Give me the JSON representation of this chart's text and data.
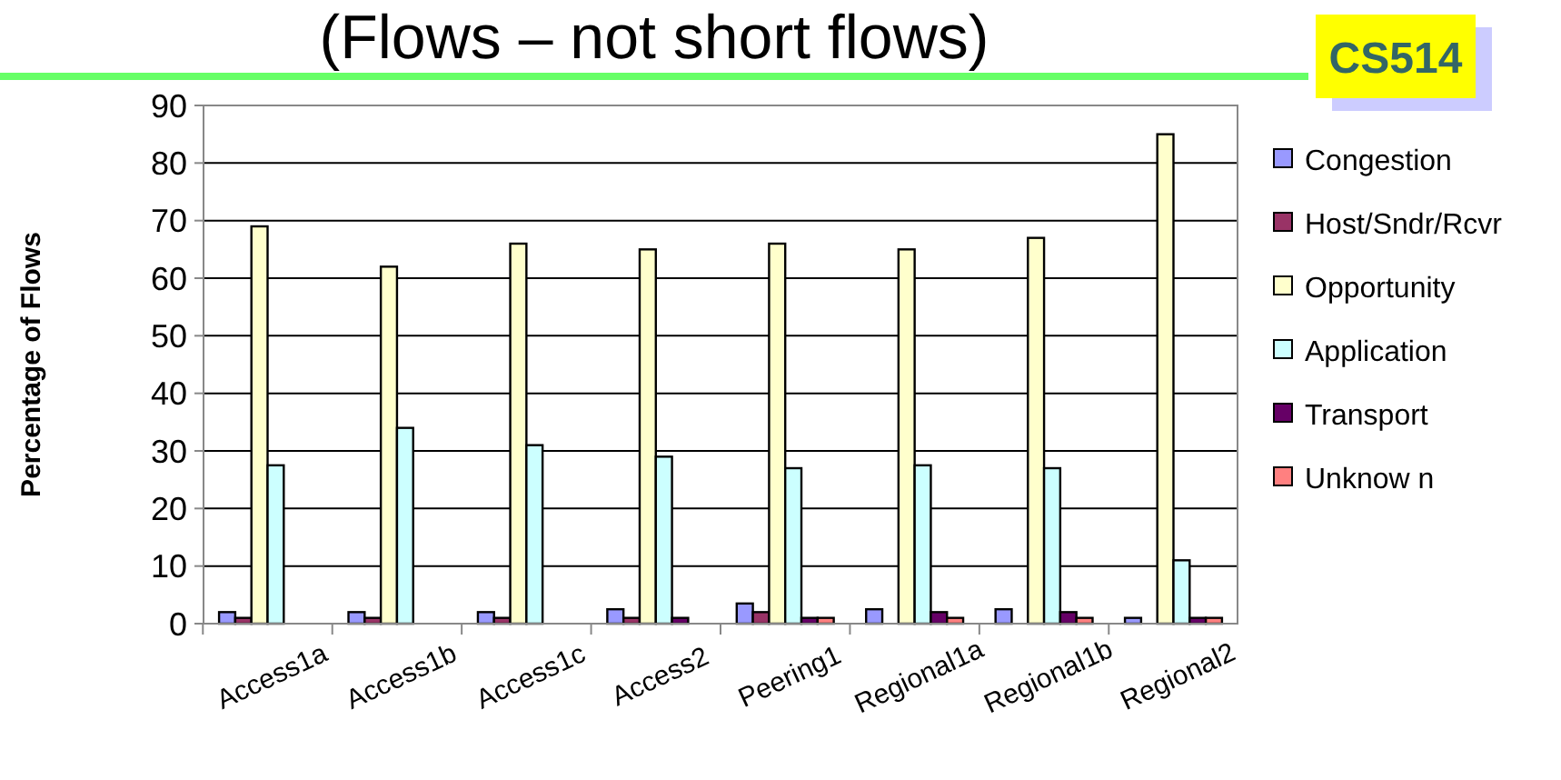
{
  "chart_data": {
    "type": "bar",
    "title": "(Flows – not short flows)",
    "ylabel": "Percentage of Flows",
    "annotations": [
      "CS514"
    ],
    "categories": [
      "Access1a",
      "Access1b",
      "Access1c",
      "Access2",
      "Peering1",
      "Regional1a",
      "Regional1b",
      "Regional2"
    ],
    "series": [
      {
        "name": "Congestion",
        "color": "#9999ff",
        "values": [
          2,
          2,
          2,
          2.5,
          3.5,
          2.5,
          2.5,
          1
        ]
      },
      {
        "name": "Host/Sndr/Rcvr",
        "color": "#993366",
        "values": [
          1,
          1,
          1,
          1,
          2,
          0,
          0,
          0
        ]
      },
      {
        "name": "Opportunity",
        "color": "#ffffcc",
        "values": [
          69,
          62,
          66,
          65,
          66,
          65,
          67,
          85
        ]
      },
      {
        "name": "Application",
        "color": "#ccffff",
        "values": [
          27.5,
          34,
          31,
          29,
          27,
          27.5,
          27,
          11
        ]
      },
      {
        "name": "Transport",
        "color": "#660066",
        "values": [
          0,
          0,
          0,
          1,
          1,
          2,
          2,
          1
        ]
      },
      {
        "name": "Unknow n",
        "color": "#ff8080",
        "values": [
          0,
          0,
          0,
          0,
          1,
          1,
          1,
          1
        ]
      }
    ],
    "ylim": [
      0,
      90
    ],
    "yticks": [
      0,
      10,
      20,
      30,
      40,
      50,
      60,
      70,
      80,
      90
    ],
    "grid": "y",
    "legend": "right"
  }
}
